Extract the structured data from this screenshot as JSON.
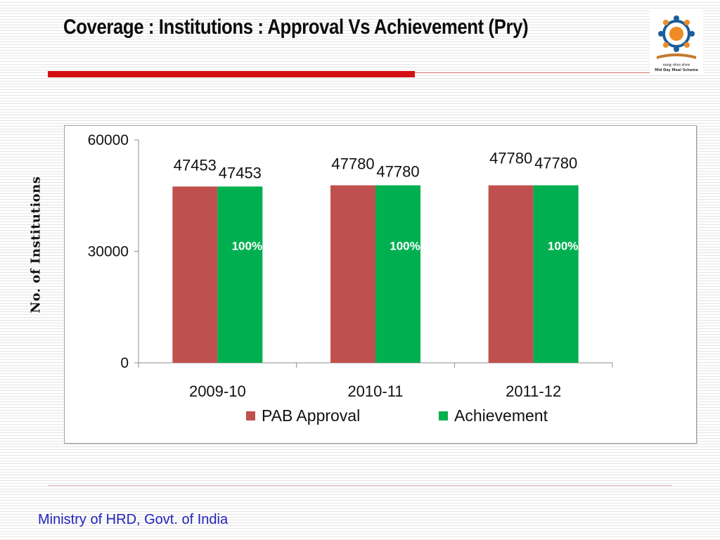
{
  "title": "Coverage : Institutions : Approval Vs Achievement (Pry)",
  "footer": "Ministry of HRD, Govt. of India",
  "logo": {
    "icon": "mid-day-meal-logo",
    "caption_hindi": "मध्याह्न भोजन योजना",
    "caption": "Mid Day Meal Scheme"
  },
  "chart_data": {
    "type": "bar",
    "categories": [
      "2009-10",
      "2010-11",
      "2011-12"
    ],
    "series": [
      {
        "name": "PAB Approval",
        "values": [
          47453,
          47780,
          47780
        ],
        "color": "#c0504d",
        "value_labels": [
          "47453",
          "47780",
          "47780"
        ]
      },
      {
        "name": "Achievement",
        "values": [
          47453,
          47780,
          47780
        ],
        "color": "#00b050",
        "value_labels": [
          "47453",
          "47780",
          "47780"
        ],
        "percent_labels": [
          "100%",
          "100%",
          "100%"
        ]
      }
    ],
    "xlabel": "",
    "ylabel": "No. of Institutions",
    "ylim": [
      0,
      60000
    ],
    "yticks": [
      0,
      30000,
      60000
    ],
    "ytick_labels": [
      "0",
      "30000",
      "60000"
    ],
    "grid": false,
    "legend": "bottom"
  }
}
